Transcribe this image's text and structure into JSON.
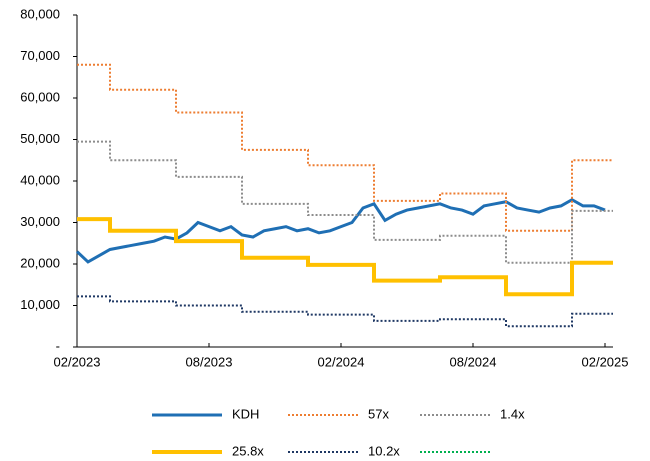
{
  "chart_data": {
    "type": "line",
    "categories": [
      "02/2023",
      null,
      null,
      null,
      null,
      null,
      null,
      null,
      null,
      null,
      null,
      null,
      "08/2023",
      null,
      null,
      null,
      null,
      null,
      null,
      null,
      null,
      null,
      null,
      null,
      "02/2024",
      null,
      null,
      null,
      null,
      null,
      null,
      null,
      null,
      null,
      null,
      null,
      "08/2024",
      null,
      null,
      null,
      null,
      null,
      null,
      null,
      null,
      null,
      null,
      null,
      "02/2025"
    ],
    "ylim": [
      0,
      80000
    ],
    "yticks": [
      {
        "value": 0,
        "label": "-"
      },
      {
        "value": 10000,
        "label": "10,000"
      },
      {
        "value": 20000,
        "label": "20,000"
      },
      {
        "value": 30000,
        "label": "30,000"
      },
      {
        "value": 40000,
        "label": "40,000"
      },
      {
        "value": 50000,
        "label": "50,000"
      },
      {
        "value": 60000,
        "label": "60,000"
      },
      {
        "value": 70000,
        "label": "70,000"
      },
      {
        "value": 80000,
        "label": "80,000"
      }
    ],
    "series": [
      {
        "name": "KDH",
        "color": "#1f6fb4",
        "style": "solid",
        "width": 3,
        "step": false,
        "values": [
          23000,
          20500,
          22000,
          23500,
          24000,
          24500,
          25000,
          25500,
          26500,
          26000,
          27500,
          30000,
          29000,
          28000,
          29000,
          27000,
          26500,
          28000,
          28500,
          29000,
          28000,
          28500,
          27500,
          28000,
          29000,
          30000,
          33500,
          34500,
          30500,
          32000,
          33000,
          33500,
          34000,
          34500,
          33500,
          33000,
          32000,
          34000,
          34500,
          35000,
          33500,
          33000,
          32500,
          33500,
          34000,
          35500,
          34000,
          34000,
          33000
        ]
      },
      {
        "name": "57x",
        "color": "#ed7d31",
        "style": "dotted",
        "width": 2,
        "step": true,
        "values": [
          68000,
          68000,
          68000,
          62000,
          62000,
          62000,
          62000,
          62000,
          62000,
          56500,
          56500,
          56500,
          56500,
          56500,
          56500,
          47500,
          47500,
          47500,
          47500,
          47500,
          47500,
          43800,
          43800,
          43800,
          43800,
          43800,
          43800,
          35200,
          35200,
          35200,
          35200,
          35200,
          35200,
          37000,
          37000,
          37000,
          37000,
          37000,
          37000,
          28000,
          28000,
          28000,
          28000,
          28000,
          28000,
          45000,
          45000,
          45000,
          45000
        ]
      },
      {
        "name": "1.4x",
        "color": "#8c8c8c",
        "style": "dotted",
        "width": 2,
        "step": true,
        "values": [
          49500,
          49500,
          49500,
          45000,
          45000,
          45000,
          45000,
          45000,
          45000,
          41000,
          41000,
          41000,
          41000,
          41000,
          41000,
          34500,
          34500,
          34500,
          34500,
          34500,
          34500,
          31800,
          31800,
          31800,
          31800,
          31800,
          31800,
          25800,
          25800,
          25800,
          25800,
          25800,
          25800,
          26800,
          26800,
          26800,
          26800,
          26800,
          26800,
          20300,
          20300,
          20300,
          20300,
          20300,
          20300,
          32800,
          32800,
          32800,
          32800
        ]
      },
      {
        "name": "25.8x",
        "color": "#ffc000",
        "style": "solid",
        "width": 4,
        "step": true,
        "values": [
          30800,
          30800,
          30800,
          28000,
          28000,
          28000,
          28000,
          28000,
          28000,
          25500,
          25500,
          25500,
          25500,
          25500,
          25500,
          21500,
          21500,
          21500,
          21500,
          21500,
          21500,
          19800,
          19800,
          19800,
          19800,
          19800,
          19800,
          16000,
          16000,
          16000,
          16000,
          16000,
          16000,
          16800,
          16800,
          16800,
          16800,
          16800,
          16800,
          12700,
          12700,
          12700,
          12700,
          12700,
          12700,
          20300,
          20300,
          20300,
          20300
        ]
      },
      {
        "name": "10.2x",
        "color": "#1f3864",
        "style": "dotted",
        "width": 2,
        "step": true,
        "values": [
          12200,
          12200,
          12200,
          11000,
          11000,
          11000,
          11000,
          11000,
          11000,
          10000,
          10000,
          10000,
          10000,
          10000,
          10000,
          8500,
          8500,
          8500,
          8500,
          8500,
          8500,
          7800,
          7800,
          7800,
          7800,
          7800,
          7800,
          6300,
          6300,
          6300,
          6300,
          6300,
          6300,
          6700,
          6700,
          6700,
          6700,
          6700,
          6700,
          5000,
          5000,
          5000,
          5000,
          5000,
          5000,
          8000,
          8000,
          8000,
          8000
        ]
      },
      {
        "color": "#00b050",
        "style": "dotted",
        "width": 2,
        "step": true,
        "values": [
          null,
          null,
          null,
          null,
          null,
          null,
          null,
          null,
          null,
          null,
          null,
          null,
          null,
          null,
          null,
          null,
          null,
          null,
          null,
          null,
          null,
          null,
          null,
          null,
          null,
          null,
          null,
          null,
          null,
          null,
          null,
          null,
          null,
          null,
          null,
          null,
          null,
          null,
          null,
          null,
          null,
          null,
          null,
          null,
          null,
          null,
          null,
          null,
          null
        ]
      }
    ]
  }
}
